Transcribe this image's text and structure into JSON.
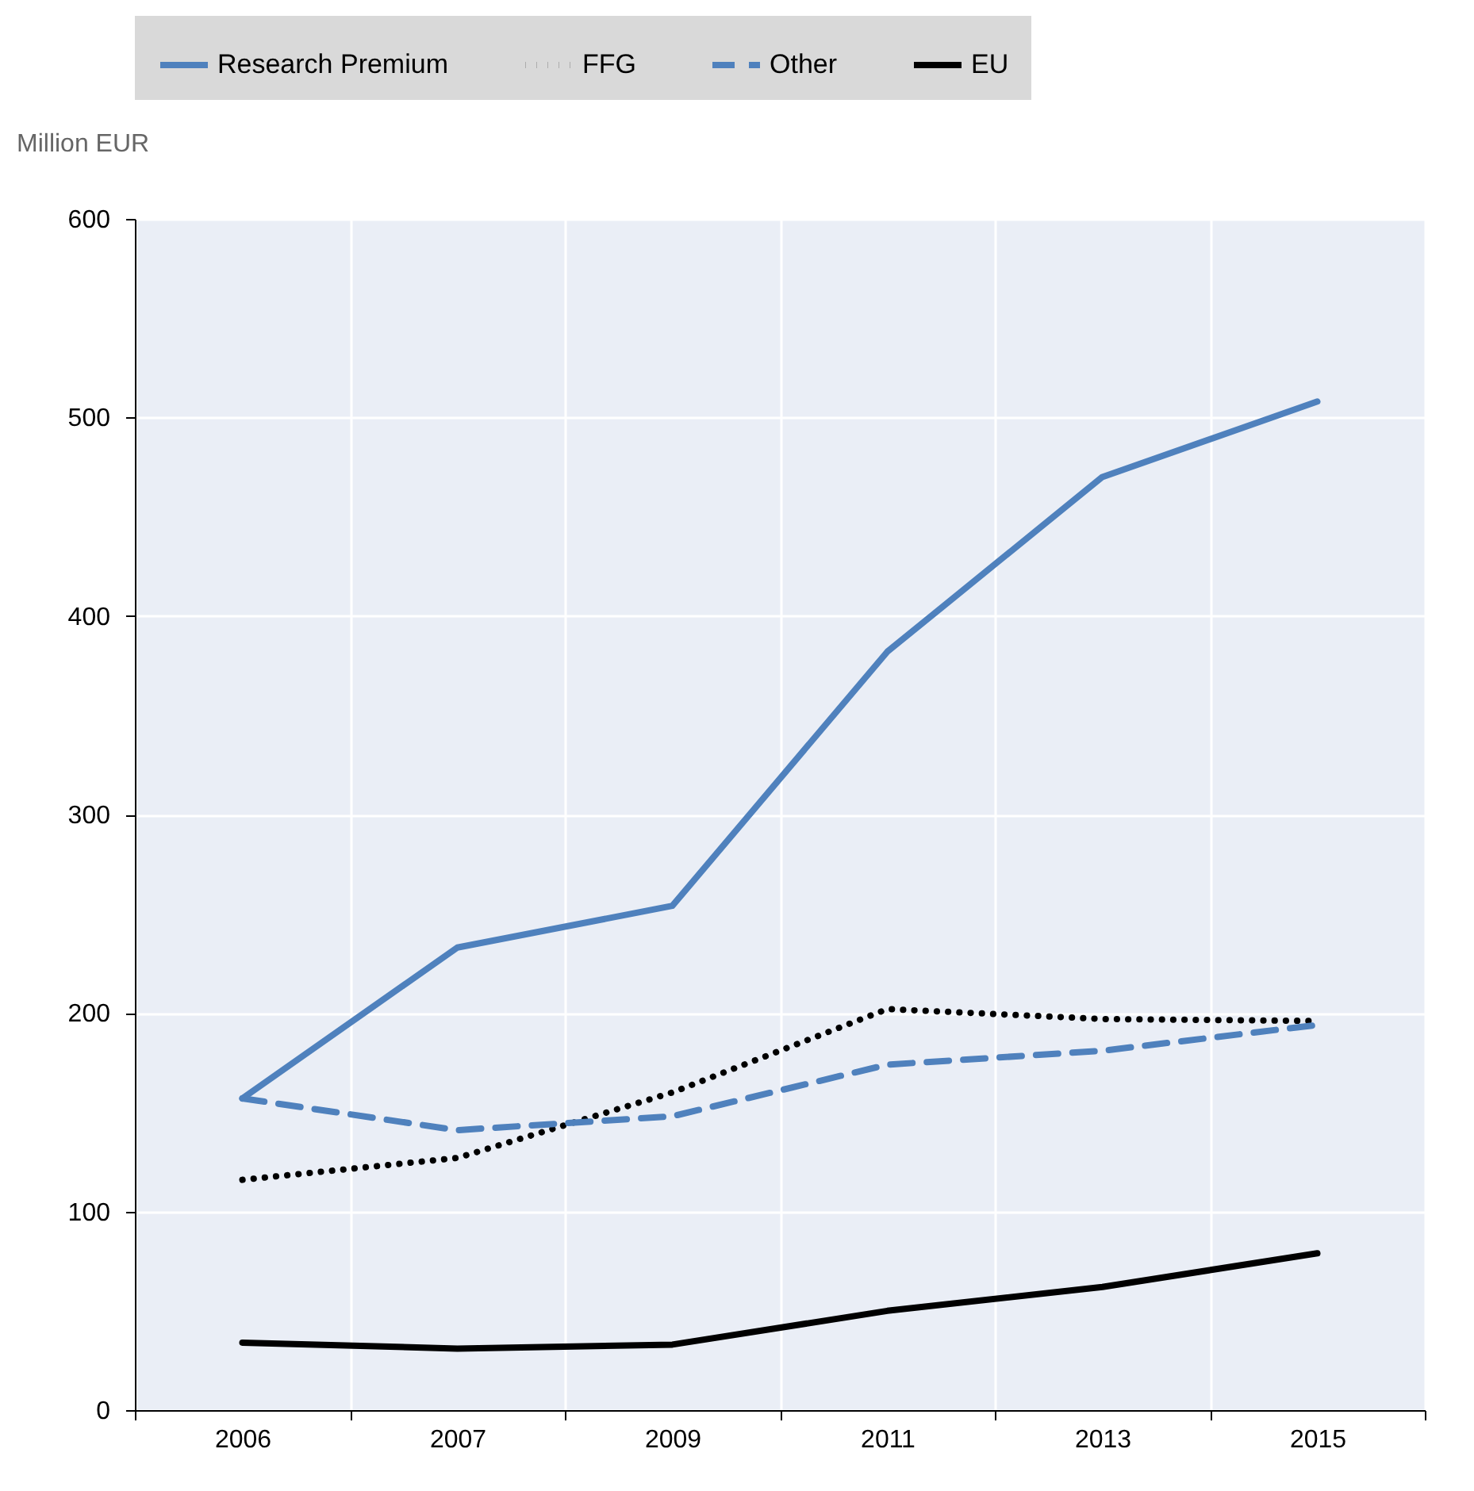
{
  "chart_data": {
    "type": "line",
    "ylabel": "Million EUR",
    "categories": [
      "2006",
      "2007",
      "2009",
      "2011",
      "2013",
      "2015"
    ],
    "series": [
      {
        "name": "Research Premium",
        "color": "#4f81bd",
        "line_style": "solid",
        "values": [
          157,
          233,
          254,
          382,
          470,
          508
        ]
      },
      {
        "name": "FFG",
        "color": "#000000",
        "line_style": "dotted",
        "values": [
          116,
          127,
          160,
          202,
          197,
          196
        ]
      },
      {
        "name": "Other",
        "color": "#4f81bd",
        "line_style": "dashed",
        "values": [
          157,
          141,
          148,
          174,
          181,
          194
        ]
      },
      {
        "name": "EU",
        "color": "#000000",
        "line_style": "solid",
        "values": [
          34,
          31,
          33,
          50,
          62,
          79
        ]
      }
    ],
    "ylim": [
      0,
      600
    ],
    "yticks": [
      0,
      100,
      200,
      300,
      400,
      500,
      600
    ],
    "grid": true,
    "legend": "top",
    "marker": "none"
  }
}
